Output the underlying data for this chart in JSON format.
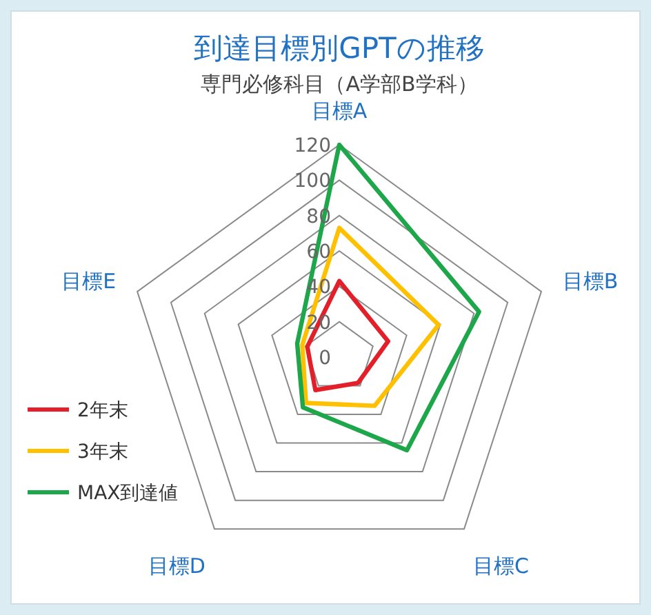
{
  "chart_data": {
    "type": "radar",
    "title": "到達目標別GPTの推移",
    "subtitle": "専門必修科目（A学部B学科）",
    "categories": [
      "目標A",
      "目標B",
      "目標C",
      "目標D",
      "目標E"
    ],
    "ylim": [
      0,
      120
    ],
    "yticks": [
      0,
      20,
      40,
      60,
      80,
      100,
      120
    ],
    "legend": "left",
    "series": [
      {
        "name": "2年末",
        "color": "#e3202a",
        "values": [
          43,
          29,
          18,
          23,
          19
        ]
      },
      {
        "name": "3年末",
        "color": "#ffc000",
        "values": [
          73,
          59,
          34,
          32,
          22
        ]
      },
      {
        "name": "MAX到達値",
        "color": "#1ea64a",
        "values": [
          120,
          83,
          65,
          35,
          25
        ]
      }
    ]
  }
}
